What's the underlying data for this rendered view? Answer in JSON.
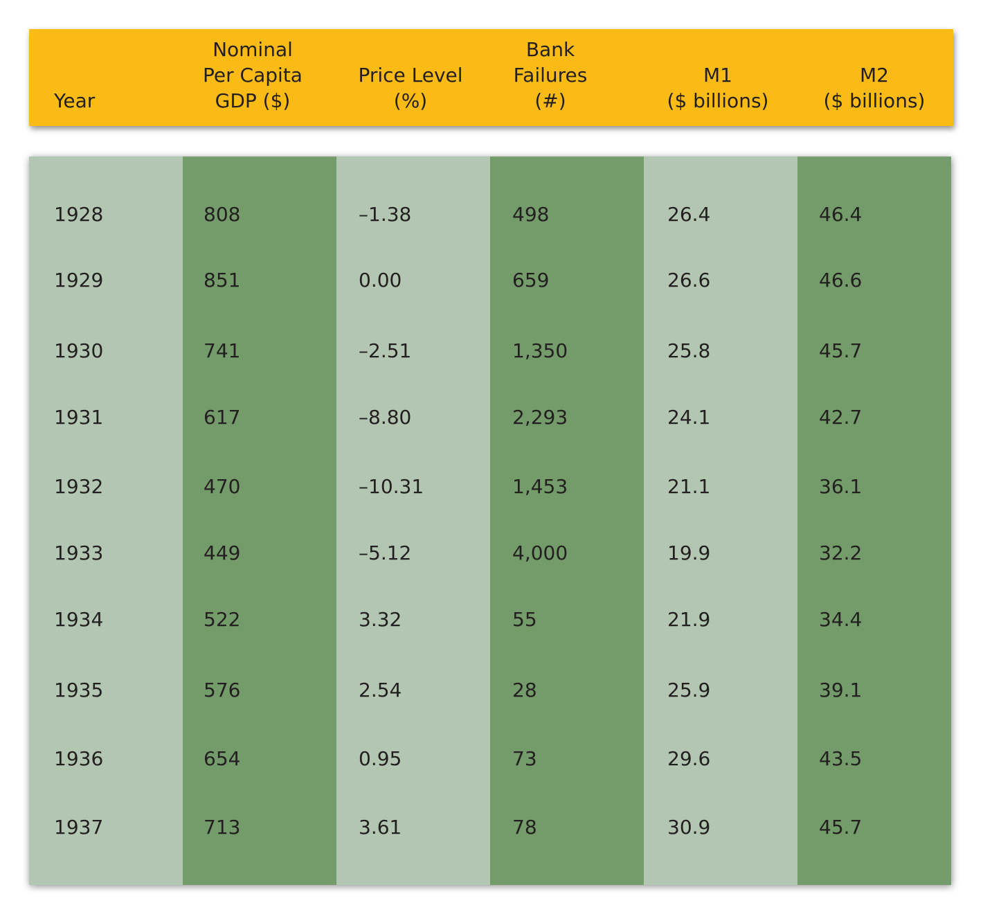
{
  "headers": [
    "Year",
    "Nominal\nPer Capita\nGDP ($)",
    "Price Level\n(%)",
    "Bank\nFailures\n(#)",
    "M1\n($ billions)",
    "M2\n($ billions)"
  ],
  "rows": [
    [
      "1928",
      "808",
      "–1.38",
      "498",
      "26.4",
      "46.4"
    ],
    [
      "1929",
      "851",
      "0.00",
      "659",
      "26.6",
      "46.6"
    ],
    [
      "1930",
      "741",
      "–2.51",
      "1,350",
      "25.8",
      "45.7"
    ],
    [
      "1931",
      "617",
      "–8.80",
      "2,293",
      "24.1",
      "42.7"
    ],
    [
      "1932",
      "470",
      "–10.31",
      "1,453",
      "21.1",
      "36.1"
    ],
    [
      "1933",
      "449",
      "–5.12",
      "4,000",
      "19.9",
      "32.2"
    ],
    [
      "1934",
      "522",
      "3.32",
      "55",
      "21.9",
      "34.4"
    ],
    [
      "1935",
      "576",
      "2.54",
      "28",
      "25.9",
      "39.1"
    ],
    [
      "1936",
      "654",
      "0.95",
      "73",
      "29.6",
      "43.5"
    ],
    [
      "1937",
      "713",
      "3.61",
      "78",
      "30.9",
      "45.7"
    ]
  ],
  "colors": {
    "header": "#fbbb16",
    "column_light": "#b3c6b1",
    "column_dark": "#749b6a",
    "text": "#231f20"
  }
}
